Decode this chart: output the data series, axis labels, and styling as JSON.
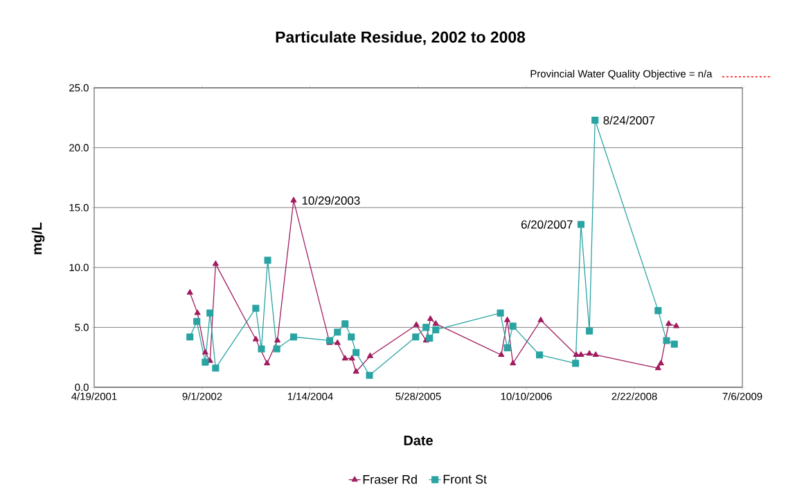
{
  "chart_data": {
    "type": "line",
    "title": "Particulate Residue, 2002 to 2008",
    "xlabel": "Date",
    "ylabel": "mg/L",
    "xlim": [
      "2001-04-19",
      "2009-07-06"
    ],
    "xticks": [
      {
        "value": "2001-04-19",
        "label": "4/19/2001"
      },
      {
        "value": "2002-09-01",
        "label": "9/1/2002"
      },
      {
        "value": "2004-01-14",
        "label": "1/14/2004"
      },
      {
        "value": "2005-05-28",
        "label": "5/28/2005"
      },
      {
        "value": "2006-10-10",
        "label": "10/10/2006"
      },
      {
        "value": "2008-02-22",
        "label": "2/22/2008"
      },
      {
        "value": "2009-07-06",
        "label": "7/6/2009"
      }
    ],
    "ylim": [
      0,
      25
    ],
    "yticks": [
      {
        "value": 0,
        "label": "0.0"
      },
      {
        "value": 5,
        "label": "5.0"
      },
      {
        "value": 10,
        "label": "10.0"
      },
      {
        "value": 15,
        "label": "15.0"
      },
      {
        "value": 20,
        "label": "20.0"
      },
      {
        "value": 25,
        "label": "25.0"
      }
    ],
    "grid": "y",
    "legend": "bottom",
    "series": [
      {
        "name": "Fraser Rd",
        "color": "#a01c5e",
        "marker": "triangle",
        "x": [
          "2002-07-06",
          "2002-08-10",
          "2002-09-15",
          "2002-10-07",
          "2002-11-02",
          "2003-05-07",
          "2003-06-28",
          "2003-08-15",
          "2003-10-29",
          "2004-04-13",
          "2004-05-19",
          "2004-06-23",
          "2004-07-25",
          "2004-08-13",
          "2004-10-17",
          "2005-05-19",
          "2005-07-03",
          "2005-07-23",
          "2005-08-17",
          "2006-06-16",
          "2006-07-14",
          "2006-08-09",
          "2006-12-16",
          "2007-05-29",
          "2007-06-20",
          "2007-07-29",
          "2007-08-27",
          "2008-06-11",
          "2008-06-24",
          "2008-07-30",
          "2008-09-03"
        ],
        "values": [
          7.9,
          6.2,
          2.9,
          2.2,
          10.3,
          4.0,
          2.0,
          3.9,
          15.6,
          3.7,
          3.7,
          2.4,
          2.4,
          1.3,
          2.6,
          5.2,
          3.9,
          5.7,
          5.3,
          2.7,
          5.6,
          2.0,
          5.6,
          2.7,
          2.7,
          2.8,
          2.7,
          1.6,
          2.0,
          5.3,
          5.1
        ]
      },
      {
        "name": "Front St",
        "color": "#2aa3a3",
        "marker": "square",
        "x": [
          "2002-07-06",
          "2002-08-07",
          "2002-09-15",
          "2002-10-07",
          "2002-11-02",
          "2003-05-07",
          "2003-06-02",
          "2003-07-01",
          "2003-08-12",
          "2003-10-29",
          "2004-04-13",
          "2004-05-19",
          "2004-06-23",
          "2004-07-22",
          "2004-08-13",
          "2004-10-14",
          "2005-05-16",
          "2005-07-03",
          "2005-07-19",
          "2005-08-17",
          "2006-06-12",
          "2006-07-14",
          "2006-08-09",
          "2006-12-10",
          "2007-05-26",
          "2007-06-20",
          "2007-07-29",
          "2007-08-24",
          "2008-06-11",
          "2008-07-20",
          "2008-08-25"
        ],
        "values": [
          4.2,
          5.5,
          2.1,
          6.2,
          1.6,
          6.6,
          3.2,
          10.6,
          3.2,
          4.2,
          3.9,
          4.6,
          5.3,
          4.2,
          2.9,
          1.0,
          4.2,
          5.0,
          4.1,
          4.8,
          6.2,
          3.3,
          5.1,
          2.7,
          2.0,
          13.6,
          4.7,
          22.3,
          6.4,
          3.9,
          3.6
        ]
      }
    ],
    "annotations": [
      {
        "text": "10/29/2003",
        "x": "2003-10-29",
        "y": 15.6
      },
      {
        "text": "6/20/2007",
        "x": "2007-06-20",
        "y": 13.6
      },
      {
        "text": "8/24/2007",
        "x": "2007-08-24",
        "y": 22.3
      }
    ],
    "ref_lines": [
      {
        "axis": "y",
        "value": null,
        "label": "Provincial Water Quality Objective = n/a",
        "color": "#ff0000",
        "line_style": "dashed"
      }
    ]
  }
}
